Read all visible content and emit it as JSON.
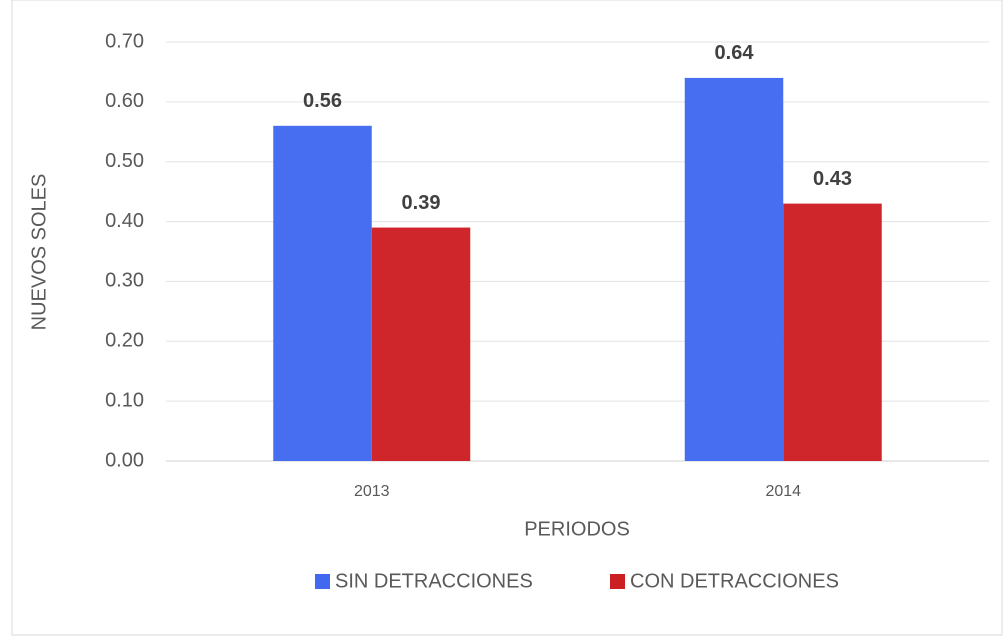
{
  "chart_data": {
    "type": "bar",
    "y_label": "NUEVOS SOLES",
    "x_label": "PERIODOS",
    "categories": [
      "2013",
      "2014"
    ],
    "series": [
      {
        "name": "SIN DETRACCIONES",
        "color": "#4169f0",
        "values": [
          0.56,
          0.64
        ]
      },
      {
        "name": "CON DETRACCIONES",
        "color": "#cc1f24",
        "values": [
          0.39,
          0.43
        ]
      }
    ],
    "ylim": [
      0,
      0.7
    ],
    "yticks": [
      {
        "value": 0,
        "label": "0.00"
      },
      {
        "value": 0.1,
        "label": "0.10"
      },
      {
        "value": 0.2,
        "label": "0.20"
      },
      {
        "value": 0.3,
        "label": "0.30"
      },
      {
        "value": 0.4,
        "label": "0.40"
      },
      {
        "value": 0.5,
        "label": "0.50"
      },
      {
        "value": 0.6,
        "label": "0.60"
      },
      {
        "value": 0.7,
        "label": "0.70"
      }
    ],
    "grid": true,
    "legend": "bottom"
  }
}
